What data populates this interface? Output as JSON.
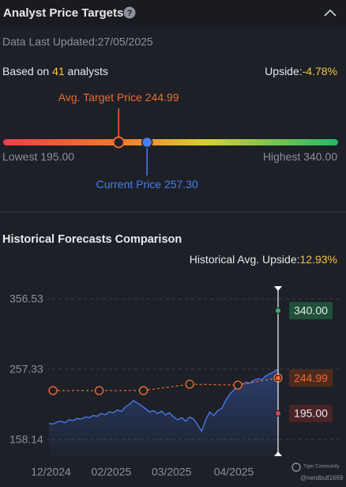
{
  "header": {
    "title": "Analyst Price Targets",
    "help_icon": "?"
  },
  "updated": "Data Last Updated:27/05/2025",
  "analysts": {
    "prefix": "Based on",
    "count": 41,
    "suffix": "analysts"
  },
  "upside": {
    "label": "Upside:",
    "value": {
      "value": -4.78,
      "label": "-4.78%"
    }
  },
  "targets": {
    "avg_label": "Avg. Target Price",
    "avg": {
      "value": 244.99,
      "label": "244.99"
    },
    "low_label": "Lowest",
    "low": {
      "value": 195,
      "label": "195.00"
    },
    "high_label": "Highest",
    "high": {
      "value": 340,
      "label": "340.00"
    },
    "current_label": "Current Price",
    "current": {
      "value": 257.3,
      "label": "257.30"
    }
  },
  "chart_data": {
    "type": "line",
    "title": "Historical Forecasts Comparison",
    "avg_upside_label": "Historical Avg. Upside:",
    "avg_upside": {
      "value": 12.93,
      "label": "12.93%"
    },
    "xlim": [
      0,
      114
    ],
    "xticks": [
      {
        "value": 1,
        "label": "12/2024"
      },
      {
        "value": 31,
        "label": "02/2025"
      },
      {
        "value": 61,
        "label": "03/2025"
      },
      {
        "value": 92,
        "label": "04/2025"
      }
    ],
    "ylim": [
      131.4,
      376.6
    ],
    "yticks": [
      {
        "value": 158.14,
        "label": "158.14"
      },
      {
        "value": 257.33,
        "label": "257.33"
      },
      {
        "value": 356.53,
        "label": "356.53"
      }
    ],
    "grid": true,
    "series": [
      {
        "color": "#4a7df0",
        "x": [
          0,
          2,
          4,
          6,
          8,
          10,
          12,
          14,
          16,
          18,
          20,
          22,
          24,
          26,
          28,
          30,
          32,
          34,
          36,
          38,
          40,
          42,
          44,
          46,
          48,
          50,
          52,
          54,
          56,
          58,
          60,
          62,
          64,
          66,
          68,
          70,
          72,
          74,
          76,
          78,
          80,
          82,
          84,
          86,
          88,
          90,
          92,
          94,
          96,
          98,
          100,
          102,
          104,
          106,
          108,
          110,
          112,
          114
        ],
        "values": [
          181,
          180,
          183,
          184,
          182,
          186,
          185,
          188,
          187,
          190,
          189,
          192,
          191,
          195,
          193,
          197,
          196,
          200,
          198,
          204,
          208,
          213,
          210,
          206,
          202,
          197,
          199,
          195,
          198,
          193,
          196,
          190,
          186,
          189,
          184,
          190,
          187,
          179,
          170,
          186,
          197,
          192,
          199,
          202,
          214,
          222,
          228,
          234,
          236,
          239,
          238,
          242,
          244,
          243,
          248,
          251,
          254,
          257.3
        ]
      },
      {
        "color": "#f06a30",
        "dashed": true,
        "x": [
          2,
          25,
          47,
          70,
          94,
          114
        ],
        "values": [
          227.2,
          227.2,
          227.2,
          236.2,
          235,
          244.99
        ]
      }
    ],
    "targets": {
      "high": {
        "value": 340,
        "label": "340.00",
        "color": "#3fae6a"
      },
      "avg": {
        "value": 244.99,
        "label": "244.99",
        "color": "#f06a30"
      },
      "low": {
        "value": 195,
        "label": "195.00",
        "color": "#d0474f"
      }
    }
  },
  "watermark": {
    "brand": "Tiger Community",
    "handle": "@nerdbull1669"
  }
}
